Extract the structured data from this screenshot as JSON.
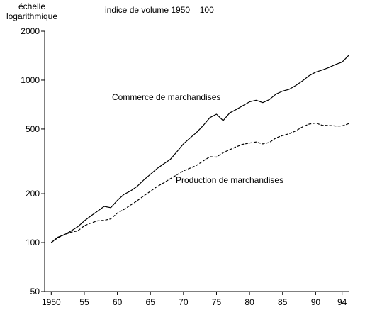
{
  "chart_data": {
    "type": "line",
    "scale_note": [
      "échelle",
      "logarithmique"
    ],
    "subtitle": "indice de volume  1950 = 100",
    "y_scale": "log",
    "ylim": [
      50,
      2000
    ],
    "xlim": [
      1949,
      1995
    ],
    "y_ticks": [
      50,
      100,
      200,
      500,
      1000,
      2000
    ],
    "y_tick_labels": [
      "50",
      "100",
      "200",
      "500",
      "1000",
      "2000"
    ],
    "x_ticks": [
      1950,
      1955,
      1960,
      1965,
      1970,
      1975,
      1980,
      1985,
      1990,
      1994
    ],
    "x_tick_labels": [
      "1950",
      "55",
      "60",
      "65",
      "70",
      "75",
      "80",
      "85",
      "90",
      "94"
    ],
    "grid": false,
    "legend": "none",
    "series": [
      {
        "name": "Commerce de marchandises",
        "style": "solid",
        "x": [
          1950,
          1951,
          1952,
          1953,
          1954,
          1955,
          1956,
          1957,
          1958,
          1959,
          1960,
          1961,
          1962,
          1963,
          1964,
          1965,
          1966,
          1967,
          1968,
          1969,
          1970,
          1971,
          1972,
          1973,
          1974,
          1975,
          1976,
          1977,
          1978,
          1979,
          1980,
          1981,
          1982,
          1983,
          1984,
          1985,
          1986,
          1987,
          1988,
          1989,
          1990,
          1991,
          1992,
          1993,
          1994,
          1995
        ],
        "values": [
          100,
          108,
          112,
          118,
          125,
          136,
          146,
          156,
          167,
          164,
          182,
          198,
          208,
          222,
          243,
          263,
          285,
          305,
          325,
          362,
          405,
          440,
          477,
          526,
          588,
          617,
          563,
          628,
          660,
          697,
          735,
          752,
          727,
          759,
          820,
          855,
          878,
          927,
          989,
          1064,
          1120,
          1154,
          1196,
          1248,
          1290,
          1420
        ]
      },
      {
        "name": "Production de marchandises",
        "style": "dashed",
        "x": [
          1950,
          1951,
          1952,
          1953,
          1954,
          1955,
          1956,
          1957,
          1958,
          1959,
          1960,
          1961,
          1962,
          1963,
          1964,
          1965,
          1966,
          1967,
          1968,
          1969,
          1970,
          1971,
          1972,
          1973,
          1974,
          1975,
          1976,
          1977,
          1978,
          1979,
          1980,
          1981,
          1982,
          1983,
          1984,
          1985,
          1986,
          1987,
          1988,
          1989,
          1990,
          1991,
          1992,
          1993,
          1994,
          1995
        ],
        "values": [
          100,
          107,
          112,
          116,
          118,
          127,
          132,
          136,
          137,
          140,
          152,
          160,
          170,
          181,
          194,
          207,
          221,
          233,
          247,
          261,
          276,
          287,
          299,
          318,
          338,
          336,
          358,
          373,
          389,
          403,
          410,
          416,
          405,
          413,
          441,
          456,
          468,
          487,
          515,
          536,
          544,
          527,
          526,
          522,
          522,
          540
        ]
      }
    ],
    "annotations": [
      {
        "text": "Commerce de marchandises",
        "series": 0
      },
      {
        "text": "Production de marchandises",
        "series": 1
      }
    ]
  }
}
